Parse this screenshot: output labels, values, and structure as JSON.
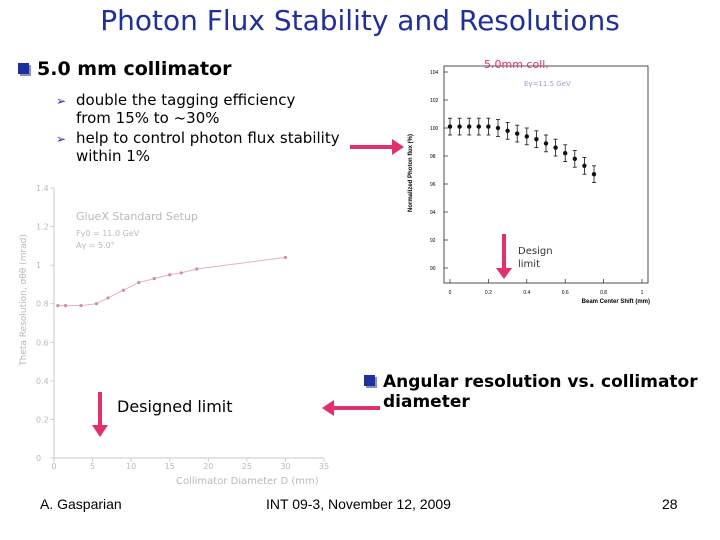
{
  "title": "Photon Flux Stability and Resolutions",
  "bullet_main": "5.0 mm collimator",
  "sub_bullets": [
    {
      "line1": "double the tagging efficiency",
      "line2": "from 15% to ~30%"
    },
    {
      "line1": "help to control photon flux stability",
      "line2": "within 1%"
    }
  ],
  "right_chart": {
    "annotation": "5.0mm coll.",
    "energy_label": "Eγ=11.5 GeV",
    "design_limit": [
      "Design",
      "limit"
    ],
    "ylabel": "Normalized Photon flux (%)",
    "xlabel": "Beam Center Shift (mm)",
    "y_ticks": [
      "104",
      "102",
      "100",
      "98",
      "96",
      "94",
      "92",
      "90"
    ],
    "x_ticks": [
      "0",
      "0.2",
      "0.4",
      "0.6",
      "0.8",
      "1"
    ],
    "chart_data": {
      "type": "scatter",
      "xlim": [
        0,
        1
      ],
      "ylim": [
        90,
        104
      ],
      "x": [
        0.0,
        0.05,
        0.1,
        0.15,
        0.2,
        0.25,
        0.3,
        0.35,
        0.4,
        0.45,
        0.5,
        0.55,
        0.6,
        0.65,
        0.7,
        0.75
      ],
      "y": [
        100.1,
        100.1,
        100.1,
        100.1,
        100.1,
        100.0,
        99.8,
        99.6,
        99.4,
        99.2,
        98.9,
        98.6,
        98.2,
        97.8,
        97.3,
        96.7
      ],
      "error": 0.6
    }
  },
  "left_chart": {
    "legend_title": "GlueX Standard Setup",
    "legend_line1": "Fγ0 = 11.0 GeV",
    "legend_line2": "Aγ = 5.0°",
    "ylabel": "Theta Resolution, σθθ (mrad)",
    "xlabel": "Collimator Diameter  D (mm)",
    "y_ticks": [
      "0",
      "0.2",
      "0.4",
      "0.6",
      "0.8",
      "1",
      "1.2",
      "1.4"
    ],
    "x_ticks": [
      "0",
      "5",
      "10",
      "15",
      "20",
      "25",
      "30",
      "35"
    ],
    "chart_data": {
      "type": "scatter",
      "xlim": [
        0,
        35
      ],
      "ylim": [
        0,
        1.4
      ],
      "x": [
        0.5,
        1.5,
        3.5,
        5.5,
        7,
        9,
        11,
        13,
        15,
        16.5,
        18.5,
        30
      ],
      "y": [
        0.79,
        0.79,
        0.79,
        0.8,
        0.83,
        0.87,
        0.91,
        0.93,
        0.95,
        0.96,
        0.98,
        1.04
      ]
    },
    "designed_limit": "Designed limit"
  },
  "bullet2": {
    "line1": "Angular resolution vs. collimator",
    "line2": "diameter"
  },
  "footer": {
    "author": "A. Gasparian",
    "event": "INT 09-3, November 12, 2009",
    "page": "28"
  },
  "colors": {
    "title": "#1f2f9c",
    "arrow": "#e1306c",
    "faded": "#b9b9b9"
  }
}
